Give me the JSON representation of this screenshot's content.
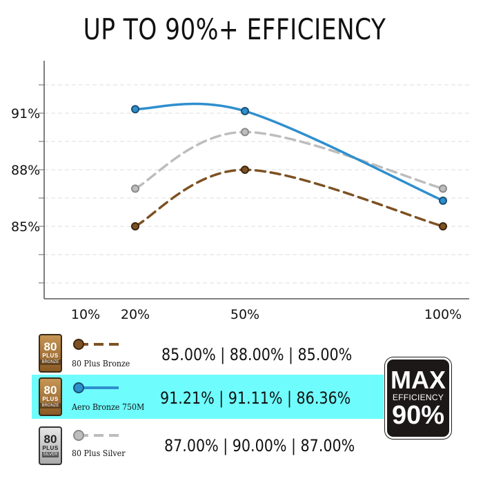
{
  "page": {
    "title": "UP TO 90%+ EFFICIENCY"
  },
  "chart_data": {
    "type": "line",
    "title": "UP TO 90%+ EFFICIENCY",
    "xlabel": "",
    "ylabel": "",
    "x_ticks": [
      "10%",
      "20%",
      "50%",
      "100%"
    ],
    "y_ticks": [
      "85%",
      "88%",
      "91%"
    ],
    "series": [
      {
        "name": "80 Plus Bronze",
        "x": [
          20,
          50,
          100
        ],
        "y": [
          85,
          88,
          85
        ],
        "color": "#7d5122",
        "style": "dashed"
      },
      {
        "name": "Aero Bronze 750M",
        "x": [
          20,
          50,
          100
        ],
        "y": [
          91.21,
          91.11,
          86.36
        ],
        "color": "#2e8fcd",
        "style": "solid"
      },
      {
        "name": "80 Plus Silver",
        "x": [
          20,
          50,
          100
        ],
        "y": [
          87,
          90,
          87
        ],
        "color": "#bdbdbd",
        "style": "dashed"
      }
    ],
    "grid": true,
    "legend_position": "bottom"
  },
  "legend": [
    {
      "label": "80 Plus Bronze",
      "values": "85.00% | 88.00% | 85.00%",
      "badge_num": "80",
      "badge_plus": "PLUS",
      "badge_tier": "BRONZE"
    },
    {
      "label": "Aero Bronze 750M",
      "values": "91.21% | 91.11% | 86.36%",
      "badge_num": "80",
      "badge_plus": "PLUS",
      "badge_tier": "BRONZE"
    },
    {
      "label": "80 Plus Silver",
      "values": "87.00% | 90.00% | 87.00%",
      "badge_num": "80",
      "badge_plus": "PLUS",
      "badge_tier": "SILVER"
    }
  ],
  "max_badge": {
    "top": "MAX",
    "middle": "EFFICIENCY",
    "bottom": "90%"
  }
}
